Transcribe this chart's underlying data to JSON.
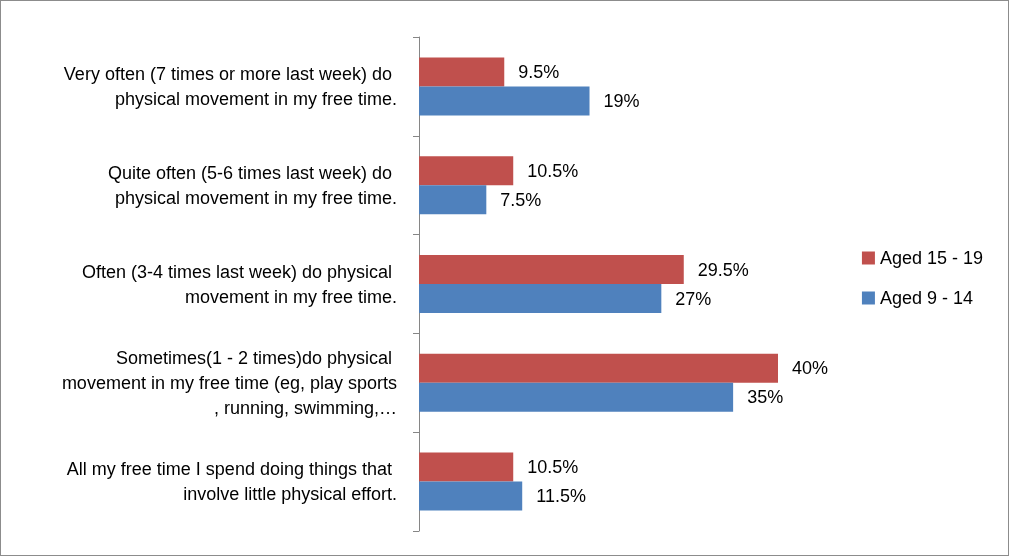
{
  "chart_data": {
    "type": "bar",
    "orientation": "horizontal",
    "categories": [
      "Very often (7 times or more last week) do physical movement in my free time.",
      "Quite often (5-6 times last week) do physical movement in my free time.",
      "Often (3-4 times last week) do physical movement in my free time.",
      "Sometimes(1 - 2 times)do physical movement in my free time (eg, play sports, running, swimming,…",
      "All my free time I spend doing things that involve little physical effort."
    ],
    "series": [
      {
        "name": "Aged 15 - 19",
        "color": "#c0504d",
        "values": [
          9.5,
          10.5,
          29.5,
          40,
          10.5
        ],
        "value_labels": [
          "9.5%",
          "10.5%",
          "29.5%",
          "40%",
          "10.5%"
        ]
      },
      {
        "name": "Aged 9 - 14",
        "color": "#4f81bd",
        "values": [
          19,
          7.5,
          27,
          35,
          11.5
        ],
        "value_labels": [
          "19%",
          "7.5%",
          "27%",
          "35%",
          "11.5%"
        ]
      }
    ],
    "legend": "right",
    "tick_labels": "y"
  }
}
